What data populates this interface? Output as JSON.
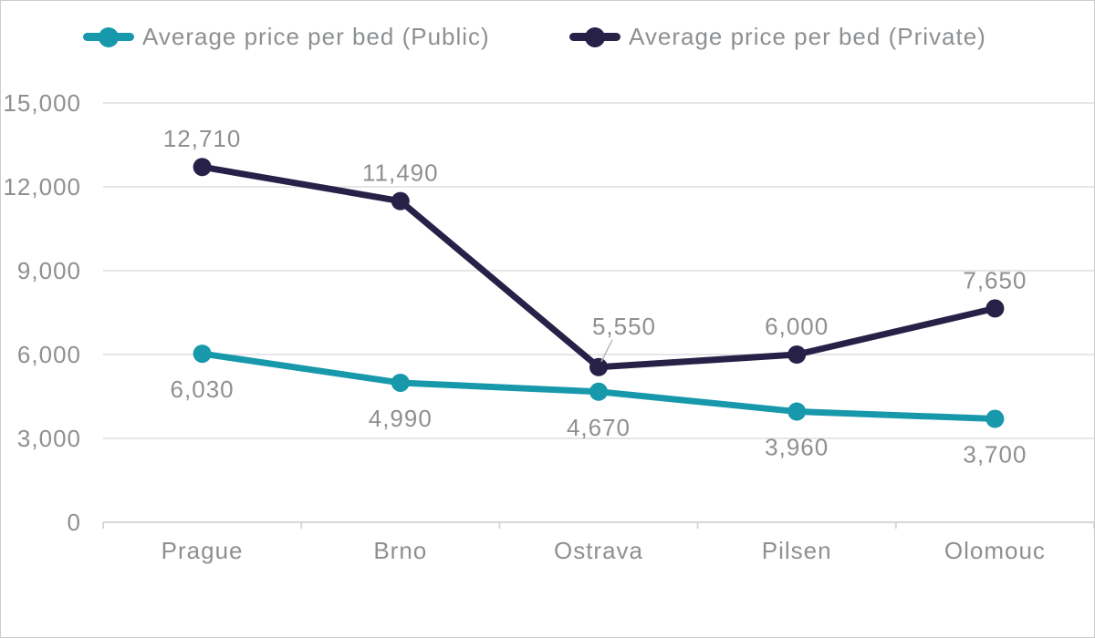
{
  "page": {
    "background": "#ffffff",
    "border_color": "#cdcdcd"
  },
  "legend": {
    "items": [
      {
        "id": "public",
        "label": "Average price per bed (Public)",
        "color": "#1898ab"
      },
      {
        "id": "private",
        "label": "Average price per bed (Private)",
        "color": "#272148"
      }
    ]
  },
  "chart_data": {
    "type": "line",
    "title": "",
    "xlabel": "",
    "ylabel": "",
    "categories": [
      "Prague",
      "Brno",
      "Ostrava",
      "Pilsen",
      "Olomouc"
    ],
    "series": [
      {
        "name": "Average price per bed (Public)",
        "color": "#1898ab",
        "values": [
          6030,
          4990,
          4670,
          3960,
          3700
        ],
        "labels": [
          "6,030",
          "4,990",
          "4,670",
          "3,960",
          "3,700"
        ],
        "label_side": "below"
      },
      {
        "name": "Average price per bed (Private)",
        "color": "#272148",
        "values": [
          12710,
          11490,
          5550,
          6000,
          7650
        ],
        "labels": [
          "12,710",
          "11,490",
          "5,550",
          "6,000",
          "7,650"
        ],
        "label_side": "above"
      }
    ],
    "y_axis": {
      "min": 0,
      "max": 15000,
      "tick_interval": 3000,
      "tick_labels": [
        "0",
        "3,000",
        "6,000",
        "9,000",
        "12,000",
        "15,000"
      ]
    },
    "grid": true,
    "legend_position": "top",
    "annotation": {
      "series": 1,
      "point_index": 2,
      "label_dx": 28,
      "label_dy": -36,
      "leader": true
    }
  },
  "style": {
    "text_color": "#8d9093",
    "grid_line_color": "#e6e6e8",
    "axis_line_color": "#d7d7d9",
    "leader_line_color": "#b6b8ba"
  }
}
